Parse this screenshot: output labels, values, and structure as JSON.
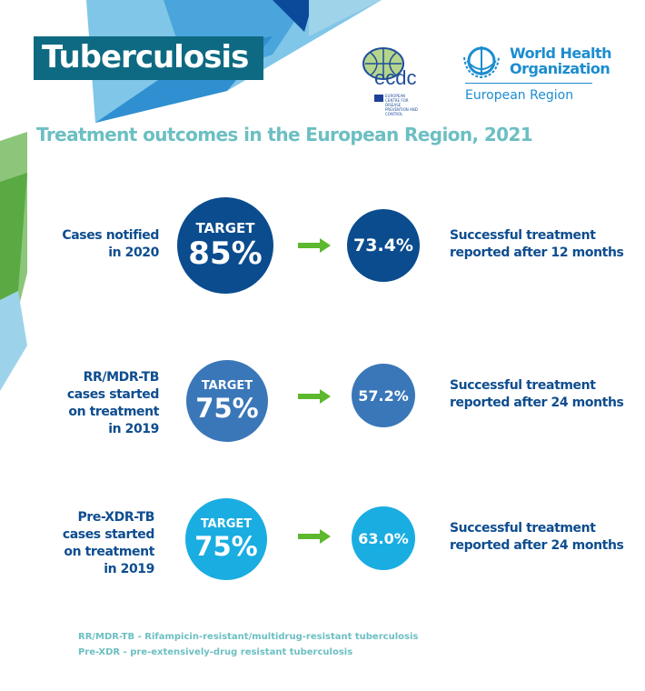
{
  "header": {
    "title": "Tuberculosis",
    "subtitle": "Treatment outcomes in the European Region, 2021"
  },
  "logos": {
    "ecdc": "ecdc",
    "ecdc_small": "EUROPEAN CENTRE FOR DISEASE PREVENTION AND CONTROL",
    "who_line1": "World Health",
    "who_line2": "Organization",
    "who_region": "European Region"
  },
  "colors": {
    "title_bg": "#0e6a82",
    "subtitle": "#6cbfc2",
    "text": "#0e4d8f",
    "row1": "#0a4c8e",
    "row2": "#3a77b8",
    "row3": "#1aade2",
    "arrow": "#5cb82e"
  },
  "rows": [
    {
      "label": [
        "Cases notified",
        "in 2020"
      ],
      "target_label": "TARGET",
      "target": "85%",
      "result": "73.4%",
      "outcome": [
        "Successful treatment",
        "reported after 12 months"
      ]
    },
    {
      "label": [
        "RR/MDR-TB",
        "cases started",
        "on treatment",
        "in 2019"
      ],
      "target_label": "TARGET",
      "target": "75%",
      "result": "57.2%",
      "outcome": [
        "Successful treatment",
        "reported after 24 months"
      ]
    },
    {
      "label": [
        "Pre-XDR-TB",
        "cases started",
        "on treatment",
        "in 2019"
      ],
      "target_label": "TARGET",
      "target": "75%",
      "result": "63.0%",
      "outcome": [
        "Successful treatment",
        "reported after 24 months"
      ]
    }
  ],
  "footnotes": [
    "RR/MDR-TB - Rifampicin-resistant/multidrug-resistant tuberculosis",
    "Pre-XDR - pre-extensively-drug resistant tuberculosis"
  ]
}
